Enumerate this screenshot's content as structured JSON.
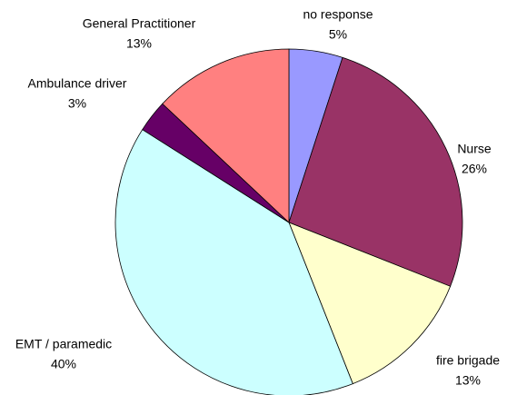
{
  "chart_data": {
    "type": "pie",
    "categories": [
      "no response",
      "Nurse",
      "fire brigade",
      "EMT / paramedic",
      "Ambulance driver",
      "General Practitioner"
    ],
    "values": [
      5,
      26,
      13,
      40,
      3,
      13
    ],
    "value_labels": [
      "5%",
      "26%",
      "13%",
      "40%",
      "3%",
      "13%"
    ],
    "colors": [
      "#9999ff",
      "#993366",
      "#ffffcc",
      "#ccffff",
      "#660066",
      "#ff8080"
    ]
  }
}
